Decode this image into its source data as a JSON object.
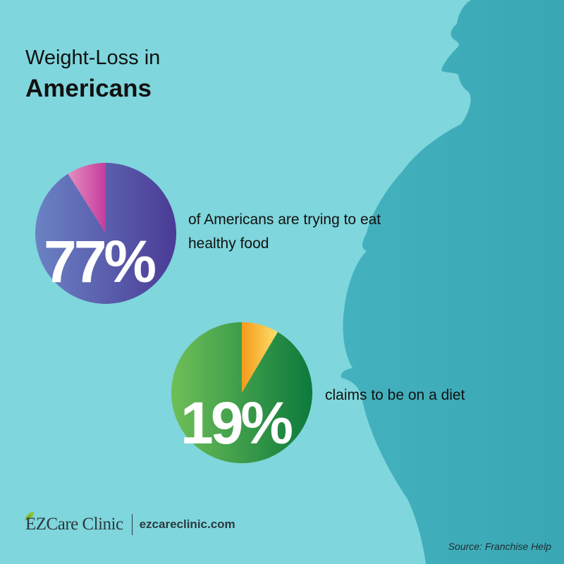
{
  "title": {
    "line1": "Weight-Loss in",
    "line2": "Americans"
  },
  "stats": [
    {
      "value": "77%",
      "fraction": 0.77,
      "text": "of Americans are trying to eat healthy food"
    },
    {
      "value": "19%",
      "fraction": 0.19,
      "text": "claims to be on a diet"
    }
  ],
  "brand": {
    "name": "EZCare Clinic",
    "url": "ezcareclinic.com"
  },
  "source": "Source: Franchise Help",
  "colors": {
    "background": "#7fd6dc",
    "silhouette": "#4db9c4",
    "pie1_main": "#5a4fa6",
    "pie1_slice": "#d04fa8",
    "pie2_main": "#2e9a4a",
    "pie2_slice": "#f7a21f"
  }
}
